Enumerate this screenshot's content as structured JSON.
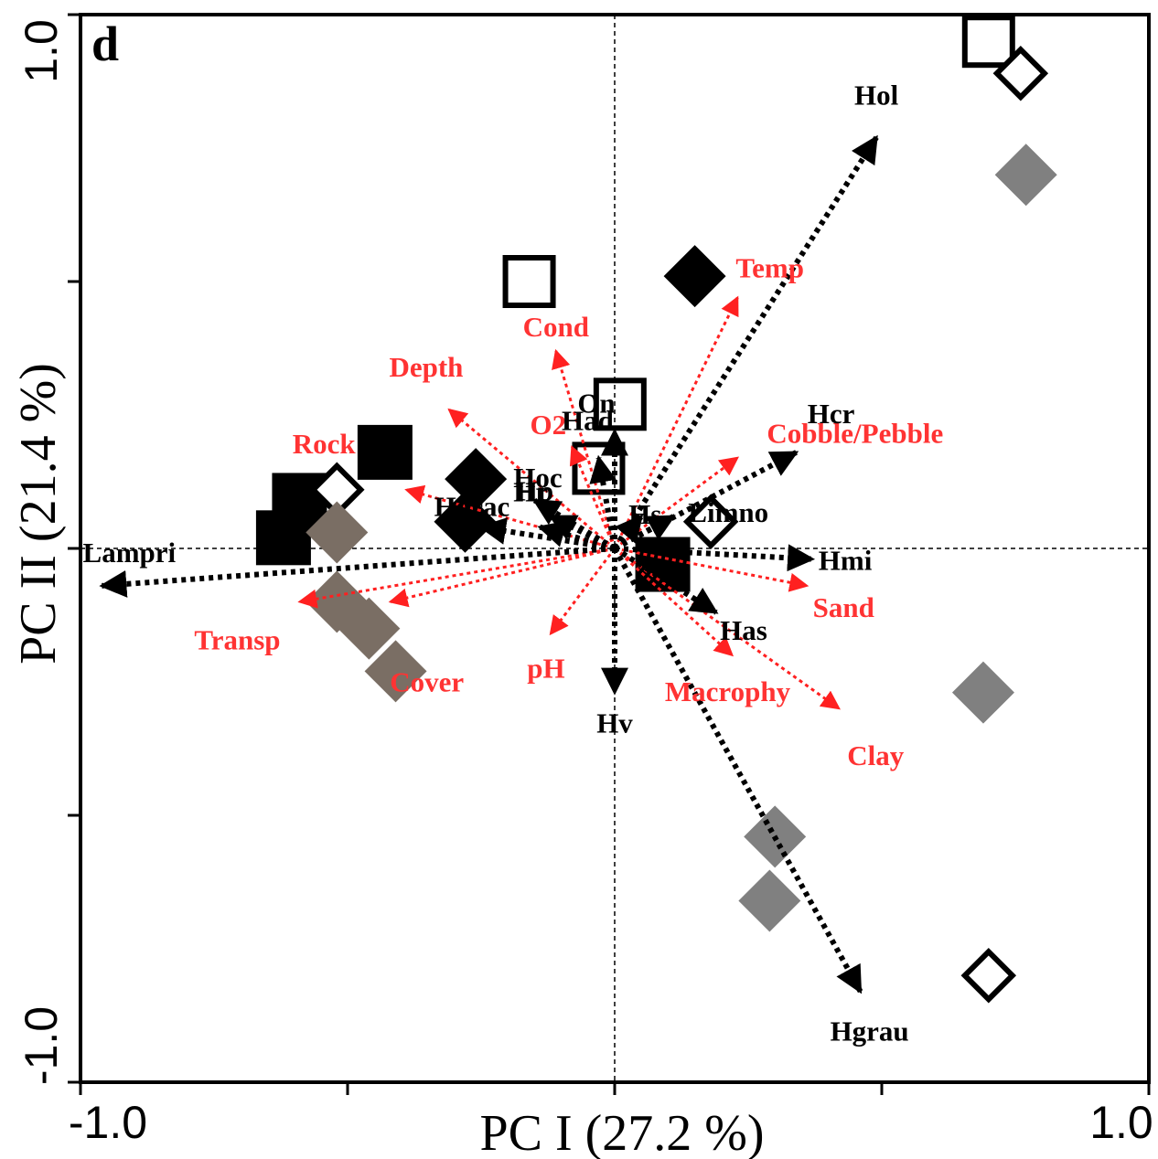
{
  "chart_data": {
    "type": "scatter",
    "panel_label": "d",
    "xlabel": "PC I (27.2 %)",
    "ylabel": "PC II (21.4 %)",
    "xlim": [
      -1.0,
      1.0
    ],
    "ylim": [
      -1.0,
      1.0
    ],
    "x_tick_labels": [
      {
        "value": -1.0,
        "label": "-1.0"
      },
      {
        "value": 1.0,
        "label": "1.0"
      }
    ],
    "y_tick_labels": [
      {
        "value": -1.0,
        "label": "-1.0"
      },
      {
        "value": 1.0,
        "label": "1.0"
      }
    ],
    "minor_ticks": [
      -1.0,
      -0.5,
      0.0,
      0.5,
      1.0
    ],
    "zero_lines": true,
    "colors": {
      "species": "#000000",
      "environment": "#ff2020",
      "grey_marker": "#808080",
      "brown_marker": "#7a6e64"
    },
    "species_vectors": [
      {
        "name": "Hol",
        "x": 0.49,
        "y": 0.77
      },
      {
        "name": "Hgrau",
        "x": 0.46,
        "y": -0.83
      },
      {
        "name": "Lampri",
        "x": -0.96,
        "y": -0.07
      },
      {
        "name": "Hmi",
        "x": 0.37,
        "y": -0.02
      },
      {
        "name": "Hcr",
        "x": 0.34,
        "y": 0.18
      },
      {
        "name": "Limno",
        "x": 0.11,
        "y": 0.06
      },
      {
        "name": "Has",
        "x": 0.19,
        "y": -0.12
      },
      {
        "name": "Hv",
        "x": 0.0,
        "y": -0.27
      },
      {
        "name": "Hs",
        "x": 0.05,
        "y": 0.06
      },
      {
        "name": "Hp",
        "x": -0.15,
        "y": 0.09
      },
      {
        "name": "Hgrac",
        "x": -0.25,
        "y": 0.04
      },
      {
        "name": "Hr",
        "x": -0.14,
        "y": 0.04
      },
      {
        "name": "Hoc",
        "x": -0.12,
        "y": 0.06
      },
      {
        "name": "Had",
        "x": -0.03,
        "y": 0.17
      },
      {
        "name": "On",
        "x": 0.0,
        "y": 0.22
      }
    ],
    "environment_vectors": [
      {
        "name": "Temp",
        "x": 0.23,
        "y": 0.47
      },
      {
        "name": "Cond",
        "x": -0.11,
        "y": 0.37
      },
      {
        "name": "Depth",
        "x": -0.31,
        "y": 0.26
      },
      {
        "name": "O2",
        "x": -0.08,
        "y": 0.19
      },
      {
        "name": "Rock",
        "x": -0.39,
        "y": 0.11
      },
      {
        "name": "Cobble/Pebble",
        "x": 0.23,
        "y": 0.17
      },
      {
        "name": "Sand",
        "x": 0.36,
        "y": -0.07
      },
      {
        "name": "Clay",
        "x": 0.42,
        "y": -0.3
      },
      {
        "name": "Macrophy",
        "x": 0.22,
        "y": -0.2
      },
      {
        "name": "pH",
        "x": -0.12,
        "y": -0.16
      },
      {
        "name": "Transp",
        "x": -0.59,
        "y": -0.1
      },
      {
        "name": "Cover",
        "x": -0.42,
        "y": -0.1
      }
    ],
    "samples": [
      {
        "marker": "square-open",
        "x": 0.7,
        "y": 0.95
      },
      {
        "marker": "diamond-open",
        "x": 0.76,
        "y": 0.89
      },
      {
        "marker": "diamond-grey",
        "x": 0.77,
        "y": 0.7
      },
      {
        "marker": "square-open",
        "x": -0.16,
        "y": 0.5
      },
      {
        "marker": "diamond-black",
        "x": 0.15,
        "y": 0.51
      },
      {
        "marker": "square-open",
        "x": 0.01,
        "y": 0.27
      },
      {
        "marker": "square-open",
        "x": -0.03,
        "y": 0.15
      },
      {
        "marker": "square-black",
        "x": -0.43,
        "y": 0.18
      },
      {
        "marker": "square-black",
        "x": -0.59,
        "y": 0.09
      },
      {
        "marker": "square-black",
        "x": -0.62,
        "y": 0.02
      },
      {
        "marker": "diamond-open",
        "x": -0.52,
        "y": 0.11
      },
      {
        "marker": "diamond-brown",
        "x": -0.52,
        "y": 0.03
      },
      {
        "marker": "diamond-brown",
        "x": -0.52,
        "y": -0.1
      },
      {
        "marker": "diamond-brown",
        "x": -0.46,
        "y": -0.15
      },
      {
        "marker": "diamond-brown",
        "x": -0.41,
        "y": -0.23
      },
      {
        "marker": "diamond-black",
        "x": -0.26,
        "y": 0.13
      },
      {
        "marker": "diamond-black",
        "x": -0.28,
        "y": 0.05
      },
      {
        "marker": "square-black",
        "x": 0.09,
        "y": -0.03
      },
      {
        "marker": "diamond-open",
        "x": 0.18,
        "y": 0.05
      },
      {
        "marker": "diamond-grey",
        "x": 0.69,
        "y": -0.27
      },
      {
        "marker": "diamond-grey",
        "x": 0.3,
        "y": -0.54
      },
      {
        "marker": "diamond-grey",
        "x": 0.29,
        "y": -0.66
      },
      {
        "marker": "diamond-open",
        "x": 0.7,
        "y": -0.8
      }
    ]
  }
}
